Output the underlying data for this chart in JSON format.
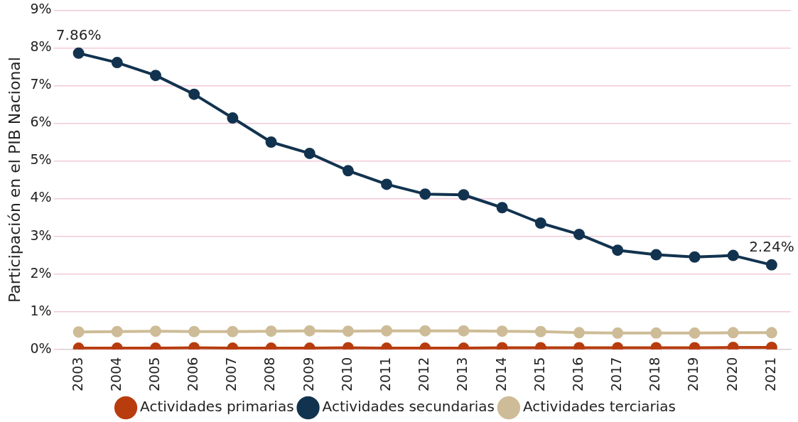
{
  "chart_data": {
    "type": "line",
    "ylabel": "Participación en el PIB Nacional",
    "categories": [
      "2003",
      "2004",
      "2005",
      "2006",
      "2007",
      "2008",
      "2009",
      "2010",
      "2011",
      "2012",
      "2013",
      "2014",
      "2015",
      "2016",
      "2017",
      "2018",
      "2019",
      "2020",
      "2021"
    ],
    "series": [
      {
        "name": "Actividades primarias",
        "color": "#b83c0e",
        "values": [
          0.03,
          0.03,
          0.03,
          0.04,
          0.03,
          0.03,
          0.03,
          0.04,
          0.03,
          0.03,
          0.03,
          0.04,
          0.04,
          0.04,
          0.04,
          0.04,
          0.04,
          0.05,
          0.05
        ]
      },
      {
        "name": "Actividades secundarias",
        "color": "#12334f",
        "values": [
          7.86,
          7.61,
          7.27,
          6.77,
          6.14,
          5.5,
          5.2,
          4.74,
          4.38,
          4.12,
          4.1,
          3.76,
          3.35,
          3.05,
          2.63,
          2.51,
          2.45,
          2.49,
          2.24
        ]
      },
      {
        "name": "Actividades terciarias",
        "color": "#cdbc97",
        "values": [
          0.46,
          0.47,
          0.48,
          0.47,
          0.47,
          0.48,
          0.49,
          0.48,
          0.49,
          0.49,
          0.49,
          0.48,
          0.47,
          0.44,
          0.43,
          0.43,
          0.43,
          0.44,
          0.44
        ]
      }
    ],
    "ylim": [
      0,
      9
    ],
    "yticks": [
      {
        "value": 0,
        "label": "0%"
      },
      {
        "value": 1,
        "label": "1%"
      },
      {
        "value": 2,
        "label": "2%"
      },
      {
        "value": 3,
        "label": "3%"
      },
      {
        "value": 4,
        "label": "4%"
      },
      {
        "value": 5,
        "label": "5%"
      },
      {
        "value": 6,
        "label": "6%"
      },
      {
        "value": 7,
        "label": "7%"
      },
      {
        "value": 8,
        "label": "8%"
      },
      {
        "value": 9,
        "label": "9%"
      }
    ],
    "annotations": [
      {
        "text": "7.86%",
        "x": "2003",
        "y": 7.86
      },
      {
        "text": "2.24%",
        "x": "2021",
        "y": 2.24
      }
    ],
    "grid": "y",
    "legend": "bottom",
    "marker": "circle",
    "line_style": "solid"
  }
}
